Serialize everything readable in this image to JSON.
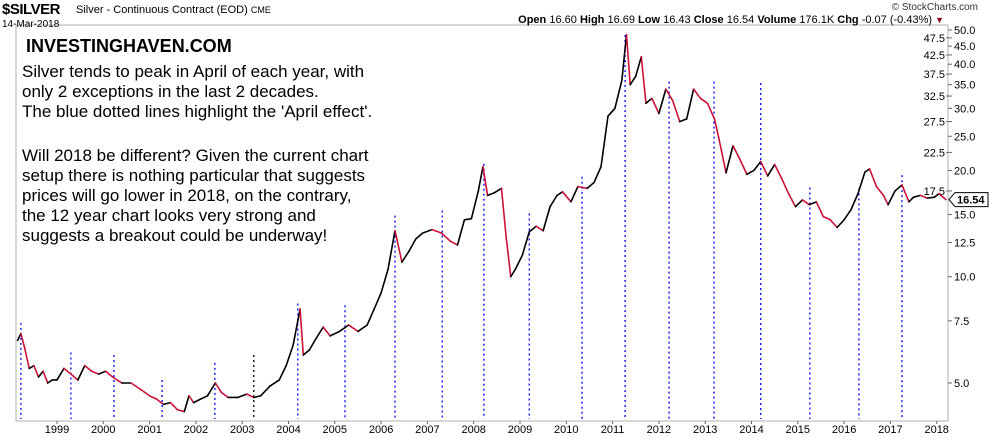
{
  "header": {
    "symbol": "$SILVER",
    "description": "Silver - Continuous Contract (EOD)",
    "exchange": "CME",
    "date": "14-Mar-2018",
    "brand": "© StockCharts.com",
    "open_label": "Open",
    "open": "16.60",
    "high_label": "High",
    "high": "16.69",
    "low_label": "Low",
    "low": "16.43",
    "close_label": "Close",
    "close": "16.54",
    "volume_label": "Volume",
    "volume": "176.1K",
    "chg_label": "Chg",
    "chg": "-0.07 (-0.43%)"
  },
  "annotation": {
    "site": "INVESTINGHAVEN.COM",
    "para1": [
      "Silver tends to peak in April of each year, with",
      "only 2 exceptions in the last 2 decades.",
      "The blue dotted lines highlight the 'April effect'."
    ],
    "para2": [
      "Will 2018 be different? Given the current chart",
      "setup there is nothing particular that suggests",
      "prices will go lower in 2018, on the contrary,",
      "the 12 year chart looks very strong and",
      "suggests a breakout could be underway!"
    ]
  },
  "colors": {
    "up": "#000000",
    "down": "#cc1138",
    "april_line": "#0000ff",
    "exception_line": "#000000",
    "axis": "#b0b0b0"
  },
  "chart_data": {
    "type": "line",
    "title": "$SILVER Silver - Continuous Contract (EOD)",
    "yscale": "log",
    "ylim": [
      4.0,
      50.0
    ],
    "xlim": [
      1998.15,
      2018.25
    ],
    "y_ticks": [
      "5.0",
      "7.5",
      "10.0",
      "12.5",
      "15.0",
      "17.5",
      "20.0",
      "22.5",
      "25.0",
      "27.5",
      "30.0",
      "32.5",
      "35.0",
      "37.5",
      "40.0",
      "42.5",
      "45.0",
      "47.5",
      "50.0"
    ],
    "x_ticks": [
      "1999",
      "2000",
      "2001",
      "2002",
      "2003",
      "2004",
      "2005",
      "2006",
      "2007",
      "2008",
      "2009",
      "2010",
      "2011",
      "2012",
      "2013",
      "2014",
      "2015",
      "2016",
      "2017",
      "2018"
    ],
    "last_value_label": "16.54",
    "series": [
      {
        "name": "Silver close",
        "x": [
          1998.15,
          1998.22,
          1998.3,
          1998.4,
          1998.5,
          1998.6,
          1998.7,
          1998.8,
          1998.9,
          1999.0,
          1999.15,
          1999.3,
          1999.45,
          1999.6,
          1999.75,
          1999.9,
          2000.05,
          2000.2,
          2000.4,
          2000.6,
          2000.8,
          2001.0,
          2001.15,
          2001.3,
          2001.45,
          2001.6,
          2001.75,
          2001.85,
          2001.95,
          2002.1,
          2002.25,
          2002.42,
          2002.55,
          2002.7,
          2002.9,
          2003.1,
          2003.25,
          2003.4,
          2003.6,
          2003.8,
          2003.95,
          2004.1,
          2004.25,
          2004.32,
          2004.45,
          2004.6,
          2004.75,
          2004.9,
          2005.1,
          2005.3,
          2005.5,
          2005.7,
          2005.85,
          2006.0,
          2006.15,
          2006.3,
          2006.45,
          2006.6,
          2006.75,
          2006.9,
          2007.1,
          2007.3,
          2007.5,
          2007.65,
          2007.8,
          2007.95,
          2008.1,
          2008.2,
          2008.3,
          2008.45,
          2008.6,
          2008.7,
          2008.8,
          2008.9,
          2009.05,
          2009.2,
          2009.35,
          2009.5,
          2009.65,
          2009.8,
          2009.92,
          2010.1,
          2010.25,
          2010.45,
          2010.6,
          2010.75,
          2010.9,
          2011.05,
          2011.2,
          2011.3,
          2011.38,
          2011.5,
          2011.62,
          2011.72,
          2011.85,
          2012.0,
          2012.15,
          2012.3,
          2012.45,
          2012.6,
          2012.75,
          2012.9,
          2013.05,
          2013.2,
          2013.3,
          2013.45,
          2013.6,
          2013.75,
          2013.9,
          2014.05,
          2014.2,
          2014.35,
          2014.5,
          2014.65,
          2014.8,
          2014.95,
          2015.1,
          2015.25,
          2015.4,
          2015.55,
          2015.7,
          2015.85,
          2016.0,
          2016.15,
          2016.3,
          2016.45,
          2016.55,
          2016.7,
          2016.85,
          2016.95,
          2017.1,
          2017.25,
          2017.4,
          2017.5,
          2017.65,
          2017.8,
          2017.95,
          2018.05,
          2018.2
        ],
        "values": [
          6.6,
          6.9,
          6.3,
          5.5,
          5.6,
          5.2,
          5.4,
          5.0,
          5.1,
          5.1,
          5.5,
          5.3,
          5.1,
          5.6,
          5.4,
          5.3,
          5.4,
          5.2,
          5.0,
          5.0,
          4.8,
          4.6,
          4.5,
          4.35,
          4.4,
          4.2,
          4.15,
          4.6,
          4.4,
          4.5,
          4.6,
          5.0,
          4.7,
          4.55,
          4.55,
          4.65,
          4.55,
          4.6,
          4.9,
          5.1,
          5.6,
          6.4,
          8.1,
          6.0,
          6.2,
          6.7,
          7.2,
          6.8,
          7.0,
          7.3,
          7.0,
          7.3,
          8.1,
          9.0,
          10.5,
          13.5,
          11.0,
          11.8,
          12.8,
          13.3,
          13.6,
          13.3,
          12.6,
          12.3,
          14.5,
          14.6,
          17.5,
          20.5,
          17.0,
          17.3,
          17.8,
          13.0,
          10.0,
          10.5,
          11.5,
          13.4,
          13.9,
          13.5,
          15.8,
          17.0,
          17.4,
          16.3,
          18.0,
          17.8,
          18.5,
          20.5,
          28.5,
          30.0,
          36.0,
          48.5,
          35.0,
          37.0,
          42.0,
          31.0,
          32.0,
          29.0,
          34.0,
          31.5,
          27.5,
          28.0,
          34.0,
          32.0,
          31.0,
          28.0,
          24.5,
          19.7,
          23.5,
          21.5,
          19.5,
          20.0,
          21.2,
          19.3,
          20.8,
          19.0,
          17.2,
          15.8,
          16.5,
          16.0,
          16.3,
          14.8,
          14.5,
          13.8,
          14.5,
          15.5,
          17.2,
          19.8,
          20.2,
          18.0,
          17.0,
          16.0,
          17.5,
          18.2,
          16.3,
          16.8,
          17.0,
          16.7,
          16.8,
          17.2,
          16.54
        ]
      }
    ],
    "april_lines": [
      {
        "x": 1998.22,
        "top": 7.4,
        "style": "blue"
      },
      {
        "x": 1999.3,
        "top": 6.1,
        "style": "blue"
      },
      {
        "x": 2000.23,
        "top": 6.0,
        "style": "blue"
      },
      {
        "x": 2001.27,
        "top": 5.1,
        "style": "blue"
      },
      {
        "x": 2002.41,
        "top": 5.7,
        "style": "blue"
      },
      {
        "x": 2003.25,
        "top": 6.0,
        "style": "black"
      },
      {
        "x": 2004.2,
        "top": 8.4,
        "style": "blue"
      },
      {
        "x": 2005.22,
        "top": 8.3,
        "style": "blue"
      },
      {
        "x": 2006.3,
        "top": 14.9,
        "style": "blue"
      },
      {
        "x": 2007.32,
        "top": 15.4,
        "style": "blue"
      },
      {
        "x": 2008.22,
        "top": 20.9,
        "style": "blue"
      },
      {
        "x": 2009.2,
        "top": 15.1,
        "style": "blue"
      },
      {
        "x": 2010.34,
        "top": 19.2,
        "style": "blue"
      },
      {
        "x": 2011.27,
        "top": 48.4,
        "style": "blue"
      },
      {
        "x": 2012.22,
        "top": 35.7,
        "style": "blue"
      },
      {
        "x": 2013.19,
        "top": 35.7,
        "style": "blue"
      },
      {
        "x": 2014.2,
        "top": 35.4,
        "style": "blue"
      },
      {
        "x": 2015.26,
        "top": 17.9,
        "style": "blue"
      },
      {
        "x": 2016.32,
        "top": 17.8,
        "style": "blue"
      },
      {
        "x": 2017.25,
        "top": 19.4,
        "style": "blue"
      }
    ]
  }
}
